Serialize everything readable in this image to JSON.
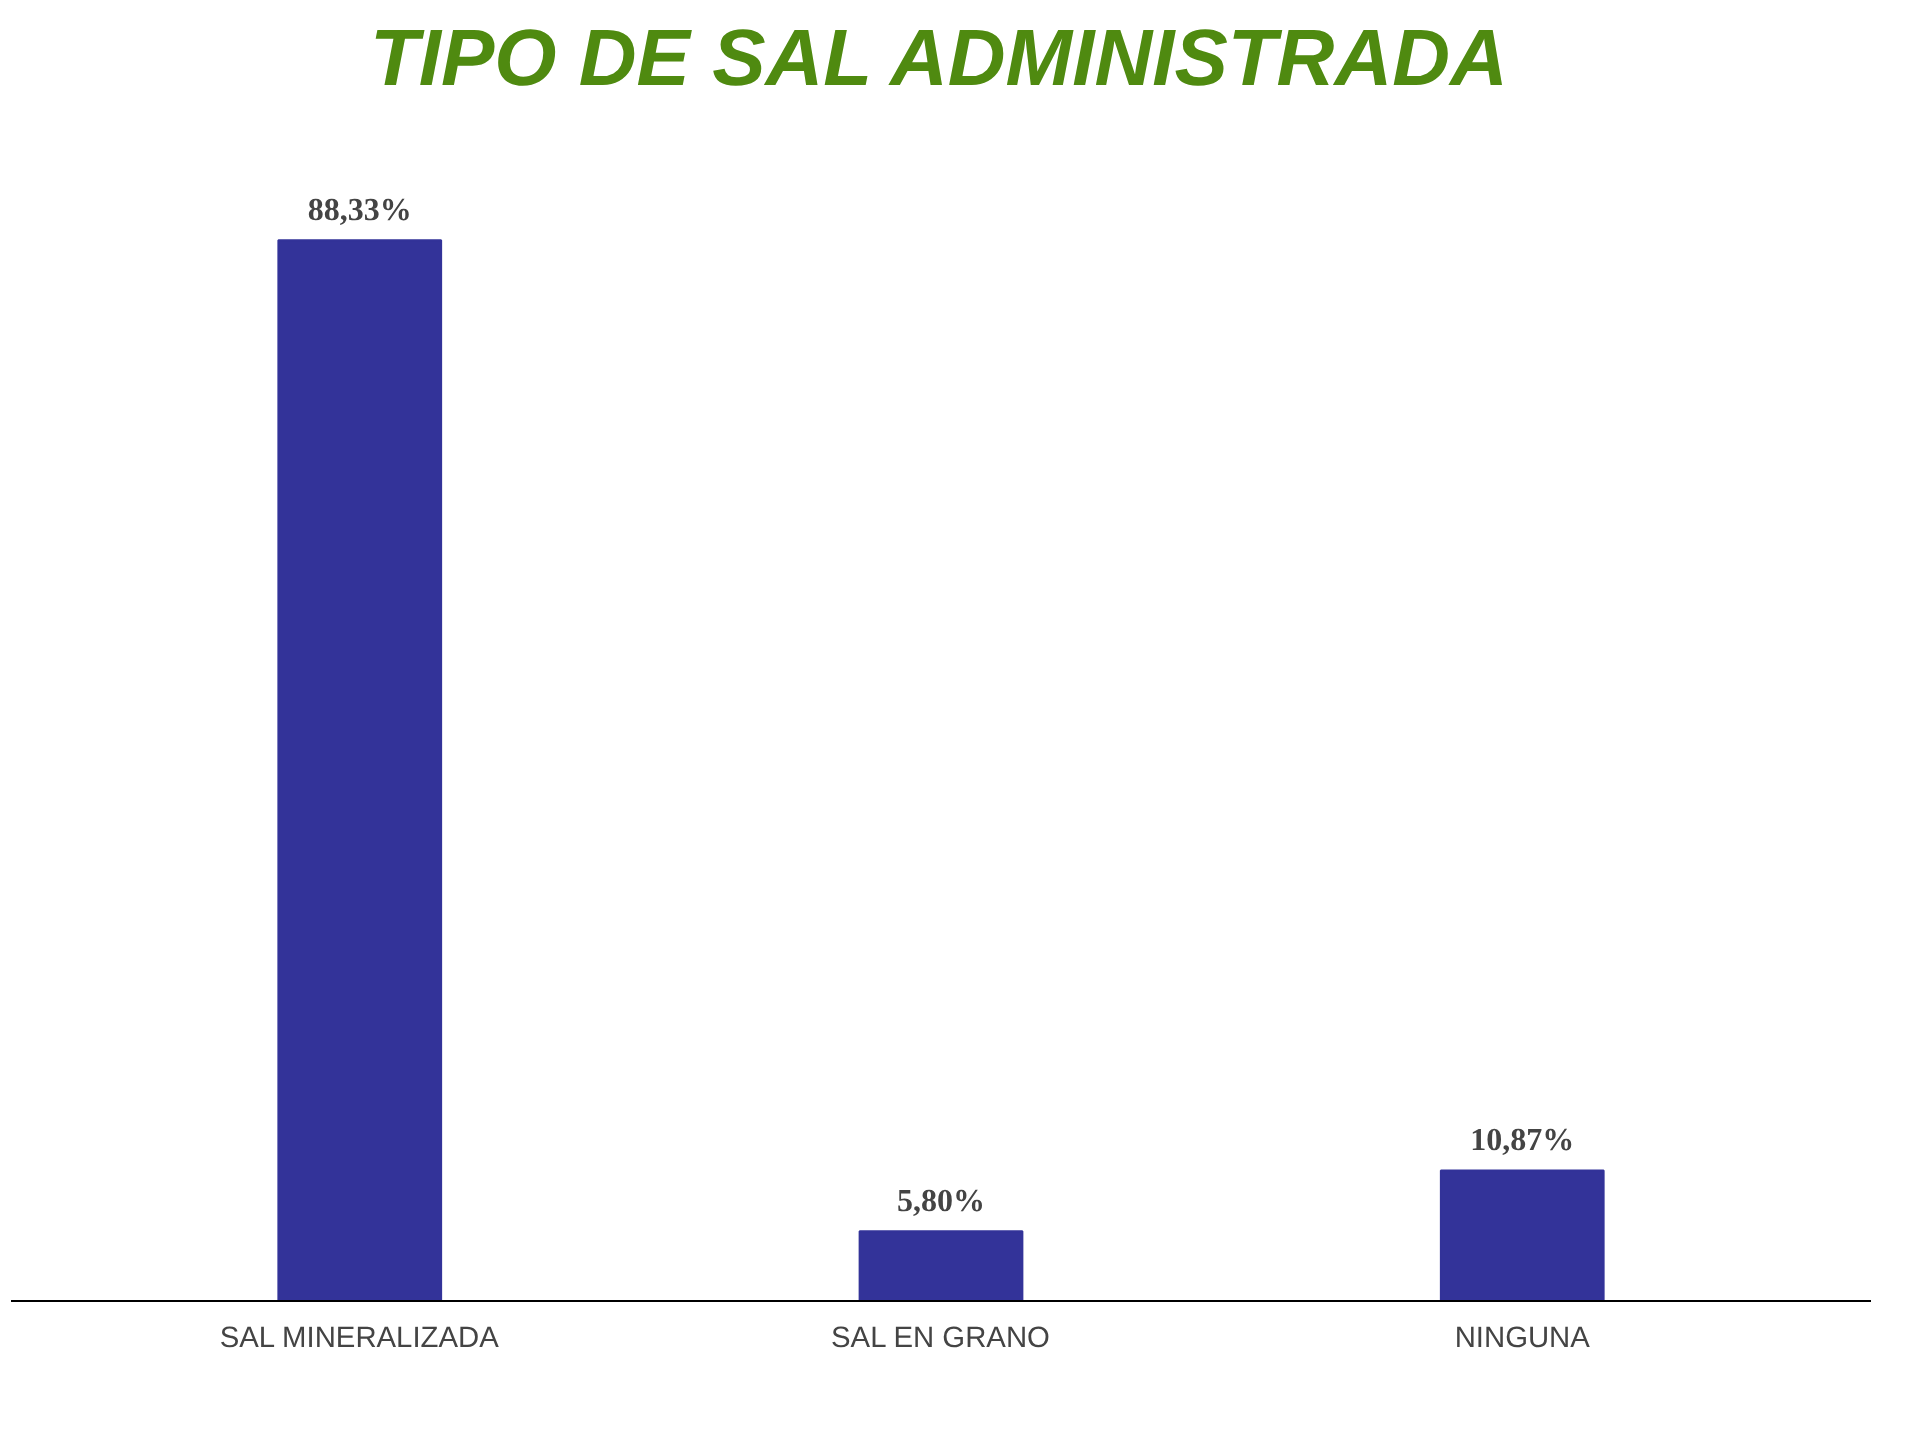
{
  "chart_data": {
    "type": "bar",
    "title": "TIPO DE SAL ADMINISTRADA",
    "categories": [
      "SAL MINERALIZADA",
      "SAL EN GRANO",
      "NINGUNA"
    ],
    "values": [
      88.33,
      5.8,
      10.87
    ],
    "value_labels": [
      "88,33%",
      "5,80%",
      "10,87%"
    ],
    "color": "#333399"
  }
}
